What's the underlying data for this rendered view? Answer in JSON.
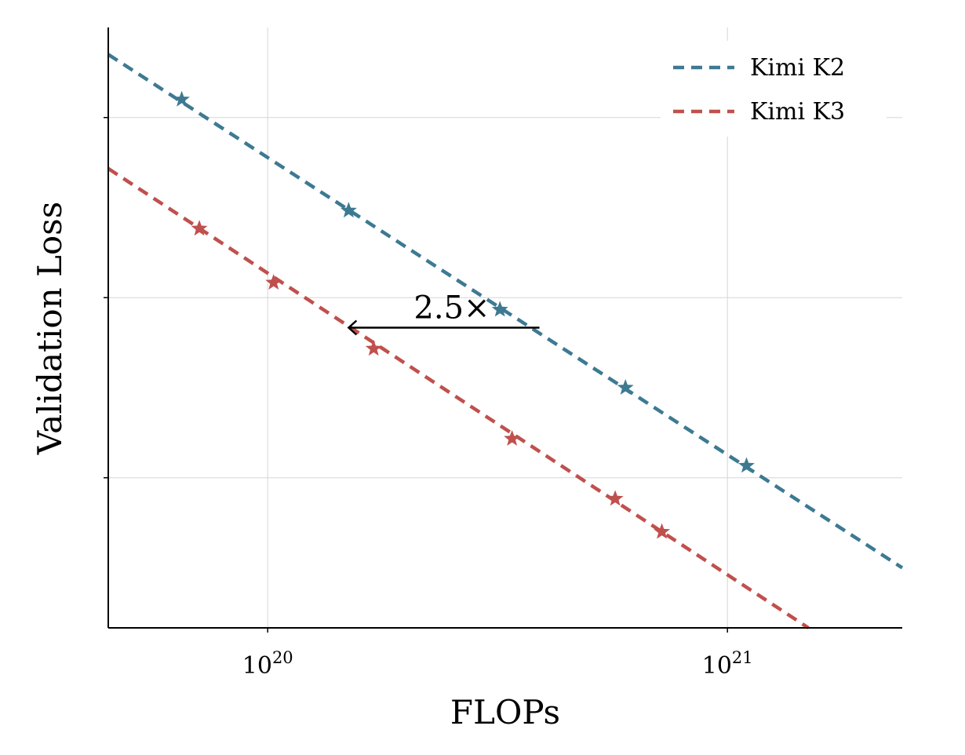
{
  "chart_data": {
    "type": "line",
    "xlabel": "FLOPs",
    "ylabel": "Validation Loss",
    "xscale": "log",
    "xlim": [
      4.5e+19,
      2.4e+21
    ],
    "ylim": [
      0.0,
      1.0
    ],
    "x_ticks": [
      {
        "value": 1e+20,
        "base": "10",
        "exp": "20"
      },
      {
        "value": 1e+21,
        "base": "10",
        "exp": "21"
      }
    ],
    "y_ticks": [
      0.25,
      0.55,
      0.85
    ],
    "grid": true,
    "legend_position": "top-right",
    "annotation": {
      "text": "2.5×",
      "from_x": 3.9e+20,
      "to_x": 1.5e+20,
      "y": 0.5
    },
    "series": [
      {
        "name": "Kimi K2",
        "color": "#3d7a92",
        "line_from": [
          4.5e+19,
          0.955
        ],
        "line_to": [
          2.4e+21,
          0.1
        ],
        "points": [
          {
            "x": 6.5e+19,
            "y": 0.88
          },
          {
            "x": 1.5e+20,
            "y": 0.695
          },
          {
            "x": 3.2e+20,
            "y": 0.53
          },
          {
            "x": 6e+20,
            "y": 0.4
          },
          {
            "x": 1.1e+21,
            "y": 0.27
          }
        ]
      },
      {
        "name": "Kimi K3",
        "color": "#c0504d",
        "line_from": [
          4.5e+19,
          0.765
        ],
        "line_to": [
          1.5e+21,
          0.0
        ],
        "points": [
          {
            "x": 7.1e+19,
            "y": 0.665
          },
          {
            "x": 1.03e+20,
            "y": 0.575
          },
          {
            "x": 1.7e+20,
            "y": 0.465
          },
          {
            "x": 3.4e+20,
            "y": 0.315
          },
          {
            "x": 5.7e+20,
            "y": 0.215
          },
          {
            "x": 7.2e+20,
            "y": 0.16
          }
        ]
      }
    ]
  }
}
